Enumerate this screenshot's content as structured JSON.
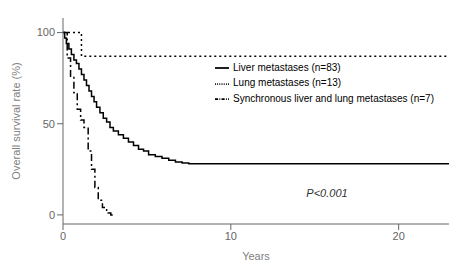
{
  "chart_data": {
    "type": "step",
    "xlabel": "Years",
    "ylabel": "Overall survival rate (%)",
    "xlim": [
      0,
      23
    ],
    "ylim": [
      -5,
      108
    ],
    "xticks": [
      0,
      10,
      20
    ],
    "yticks": [
      0,
      50,
      100
    ],
    "grid": false,
    "legend": "right",
    "annotations": [
      {
        "text": "P<0.001",
        "x": 14.5,
        "y": 12
      }
    ],
    "series": [
      {
        "name": "Lung metastases (n=13)",
        "color": "#000000",
        "line_style": "dotted",
        "x": [
          0,
          0.3,
          0.3,
          1.1,
          1.1,
          23
        ],
        "values": [
          100,
          100,
          100,
          100,
          87,
          87
        ]
      },
      {
        "name": "Liver metastases (n=83)",
        "color": "#000000",
        "line_style": "solid",
        "x": [
          0,
          0.1,
          0.2,
          0.35,
          0.5,
          0.65,
          0.8,
          0.95,
          1.1,
          1.25,
          1.4,
          1.55,
          1.7,
          1.85,
          2.0,
          2.2,
          2.4,
          2.6,
          2.8,
          3.0,
          3.3,
          3.6,
          3.9,
          4.2,
          4.5,
          4.8,
          5.1,
          5.5,
          5.9,
          6.3,
          6.7,
          7.1,
          7.5,
          7.9,
          8.3,
          13.0,
          23
        ],
        "values": [
          100,
          97,
          94,
          91,
          88,
          85,
          83,
          80,
          77,
          74,
          71,
          68,
          65,
          62,
          59,
          56,
          53,
          51,
          48,
          46,
          44,
          42,
          40,
          38,
          36,
          35,
          33,
          32,
          31,
          30,
          29,
          28.5,
          28,
          28,
          28,
          28,
          28
        ]
      },
      {
        "name": "Synchronous liver and lung metastases (n=7)",
        "color": "#000000",
        "line_style": "dashdot",
        "x": [
          0,
          0.25,
          0.45,
          0.65,
          0.85,
          1.05,
          1.25,
          1.5,
          1.7,
          1.9,
          2.1,
          2.35,
          2.6,
          2.85,
          3.1
        ],
        "values": [
          100,
          86,
          76,
          67,
          58,
          52,
          48,
          35,
          25,
          15,
          8,
          4,
          1,
          0,
          0
        ]
      }
    ]
  }
}
